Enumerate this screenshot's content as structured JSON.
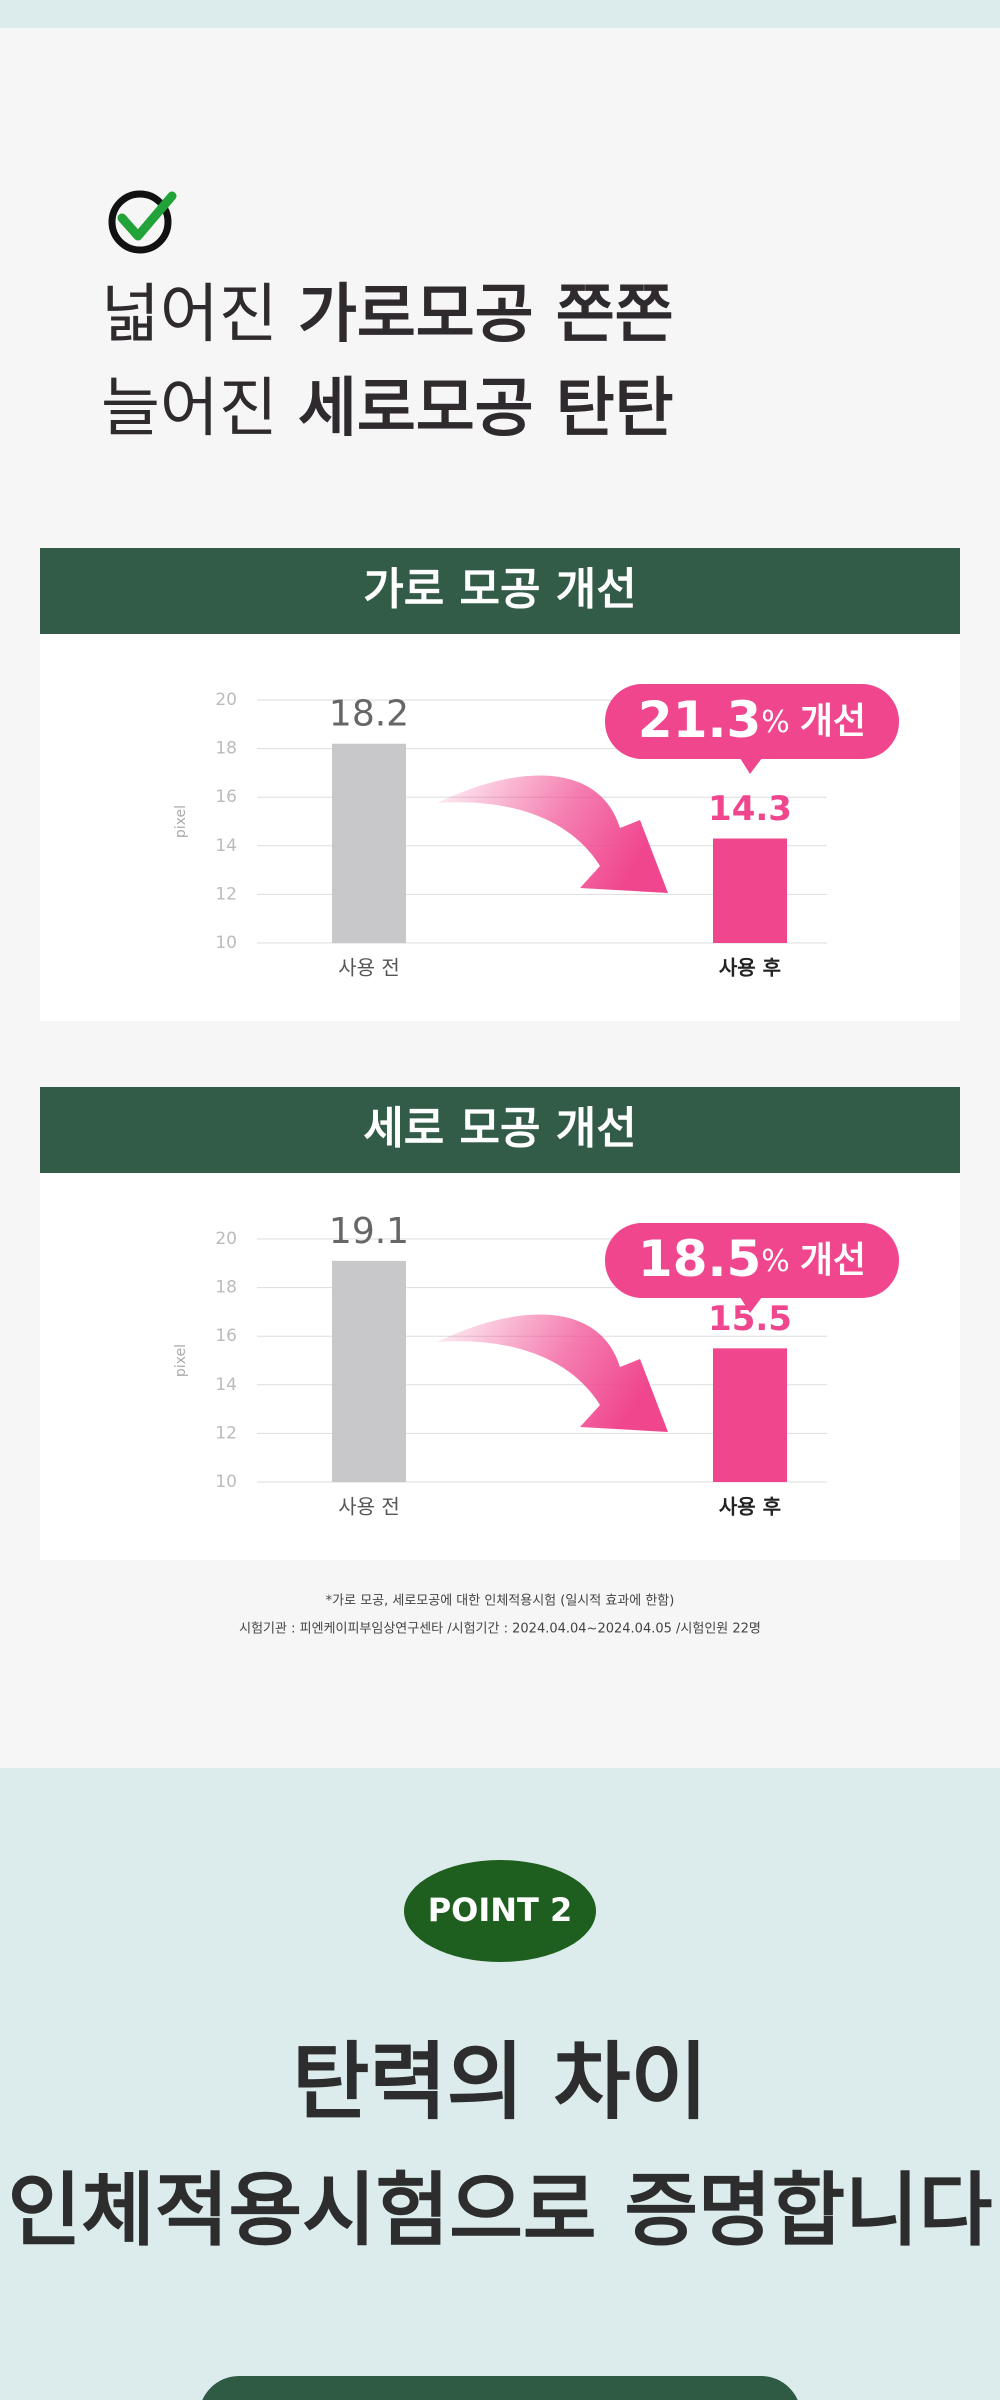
{
  "header": {
    "title_lines": [
      {
        "light": "넓어진",
        "bold": "가로모공 쫀쫀"
      },
      {
        "light": "늘어진",
        "bold": "세로모공 탄탄"
      }
    ]
  },
  "charts": [
    {
      "type": "bar",
      "title": "가로 모공 개선",
      "y_label": "pixel",
      "categories": [
        "사용 전",
        "사용 후"
      ],
      "values": [
        18.2,
        14.3
      ],
      "colors": [
        "#c8c8ca",
        "#f0468e"
      ],
      "ylim": [
        10,
        20
      ],
      "yticks": [
        10,
        12,
        14,
        16,
        18,
        20
      ],
      "grid": true,
      "badge": {
        "value": "21.3",
        "unit": "%",
        "text": "개선"
      }
    },
    {
      "type": "bar",
      "title": "세로 모공 개선",
      "y_label": "pixel",
      "categories": [
        "사용 전",
        "사용 후"
      ],
      "values": [
        19.1,
        15.5
      ],
      "colors": [
        "#c8c8ca",
        "#f0468e"
      ],
      "ylim": [
        10,
        20
      ],
      "yticks": [
        10,
        12,
        14,
        16,
        18,
        20
      ],
      "grid": true,
      "badge": {
        "value": "18.5",
        "unit": "%",
        "text": "개선"
      }
    }
  ],
  "footnote": [
    "*가로 모공, 세로모공에 대한 인체적용시험 (일시적 효과에 한함)",
    "시험기관 : 피엔케이피부임상연구센타 /시험기간 : 2024.04.04~2024.04.05 /시험인원 22명"
  ],
  "point": {
    "label": "POINT 2",
    "title_lines": [
      "탄력의 차이",
      "인체적용시험으로 증명합니다"
    ]
  }
}
